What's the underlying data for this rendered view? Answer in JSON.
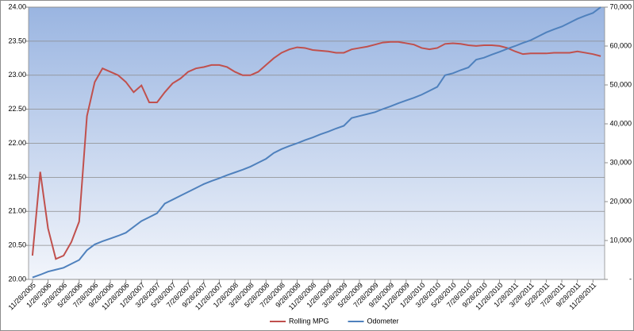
{
  "chart_data": {
    "type": "line",
    "categories": [
      "11/28/2005",
      null,
      "1/28/2006",
      null,
      "3/28/2006",
      null,
      "5/28/2006",
      null,
      "7/28/2006",
      null,
      "9/28/2006",
      null,
      "11/28/2006",
      null,
      "1/28/2007",
      null,
      "3/28/2007",
      null,
      "5/28/2007",
      null,
      "7/28/2007",
      null,
      "9/28/2007",
      null,
      "11/28/2007",
      null,
      "1/28/2008",
      null,
      "3/28/2008",
      null,
      "5/28/2008",
      null,
      "7/28/2008",
      null,
      "9/28/2008",
      null,
      "11/28/2008",
      null,
      "1/28/2009",
      null,
      "3/28/2009",
      null,
      "5/28/2009",
      null,
      "7/28/2009",
      null,
      "9/28/2009",
      null,
      "11/28/2009",
      null,
      "1/28/2010",
      null,
      "3/28/2010",
      null,
      "5/28/2010",
      null,
      "7/28/2010",
      null,
      "9/28/2010",
      null,
      "11/28/2010",
      null,
      "1/28/2011",
      null,
      "3/28/2011",
      null,
      "5/28/2011",
      null,
      "7/28/2011",
      null,
      "9/28/2011",
      null,
      "11/28/2011",
      null
    ],
    "series": [
      {
        "name": "Rolling MPG",
        "color": "#c0504d",
        "axis": "y",
        "values": [
          20.35,
          21.58,
          20.75,
          20.3,
          20.35,
          20.55,
          20.85,
          22.4,
          22.9,
          23.1,
          23.05,
          23.0,
          22.9,
          22.75,
          22.85,
          22.6,
          22.6,
          22.75,
          22.88,
          22.95,
          23.05,
          23.1,
          23.12,
          23.15,
          23.15,
          23.12,
          23.05,
          23.0,
          23.0,
          23.05,
          23.15,
          23.25,
          23.33,
          23.38,
          23.41,
          23.4,
          23.37,
          23.36,
          23.35,
          23.33,
          23.33,
          23.38,
          23.4,
          23.42,
          23.45,
          23.48,
          23.49,
          23.49,
          23.47,
          23.45,
          23.4,
          23.38,
          23.4,
          23.46,
          23.47,
          23.46,
          23.44,
          23.43,
          23.44,
          23.44,
          23.43,
          23.4,
          23.35,
          23.31,
          23.32,
          23.32,
          23.32,
          23.33,
          23.33,
          23.33,
          23.35,
          23.33,
          23.31,
          23.28
        ]
      },
      {
        "name": "Odometer",
        "color": "#4f81bd",
        "axis": "y2",
        "values": [
          500,
          1200,
          2000,
          2500,
          3000,
          4000,
          5000,
          7500,
          9000,
          9800,
          10500,
          11200,
          12000,
          13500,
          15000,
          16000,
          17000,
          19500,
          20500,
          21500,
          22500,
          23500,
          24500,
          25300,
          26000,
          26800,
          27500,
          28200,
          29000,
          30000,
          31000,
          32500,
          33500,
          34300,
          35000,
          35800,
          36500,
          37300,
          38000,
          38800,
          39500,
          41500,
          42000,
          42500,
          43000,
          43800,
          44500,
          45300,
          46000,
          46700,
          47500,
          48500,
          49500,
          52500,
          53000,
          53800,
          54500,
          56500,
          57000,
          57800,
          58500,
          59300,
          60000,
          60800,
          61500,
          62500,
          63500,
          64300,
          65000,
          66000,
          67000,
          67800,
          68500,
          70000
        ]
      }
    ],
    "ylim": [
      20,
      24
    ],
    "yticks": [
      {
        "value": 20,
        "label": "20.00"
      },
      {
        "value": 20.5,
        "label": "20.50"
      },
      {
        "value": 21,
        "label": "21.00"
      },
      {
        "value": 21.5,
        "label": "21.50"
      },
      {
        "value": 22,
        "label": "22.00"
      },
      {
        "value": 22.5,
        "label": "22.50"
      },
      {
        "value": 23,
        "label": "23.00"
      },
      {
        "value": 23.5,
        "label": "23.50"
      },
      {
        "value": 24,
        "label": "24.00"
      }
    ],
    "y2lim": [
      0,
      70000
    ],
    "y2ticks": [
      {
        "value": 0,
        "label": "-"
      },
      {
        "value": 10000,
        "label": "10,000"
      },
      {
        "value": 20000,
        "label": "20,000"
      },
      {
        "value": 30000,
        "label": "30,000"
      },
      {
        "value": 40000,
        "label": "40,000"
      },
      {
        "value": 50000,
        "label": "50,000"
      },
      {
        "value": 60000,
        "label": "60,000"
      },
      {
        "value": 70000,
        "label": "70,000"
      }
    ],
    "grid": true,
    "legend": "bottom"
  }
}
